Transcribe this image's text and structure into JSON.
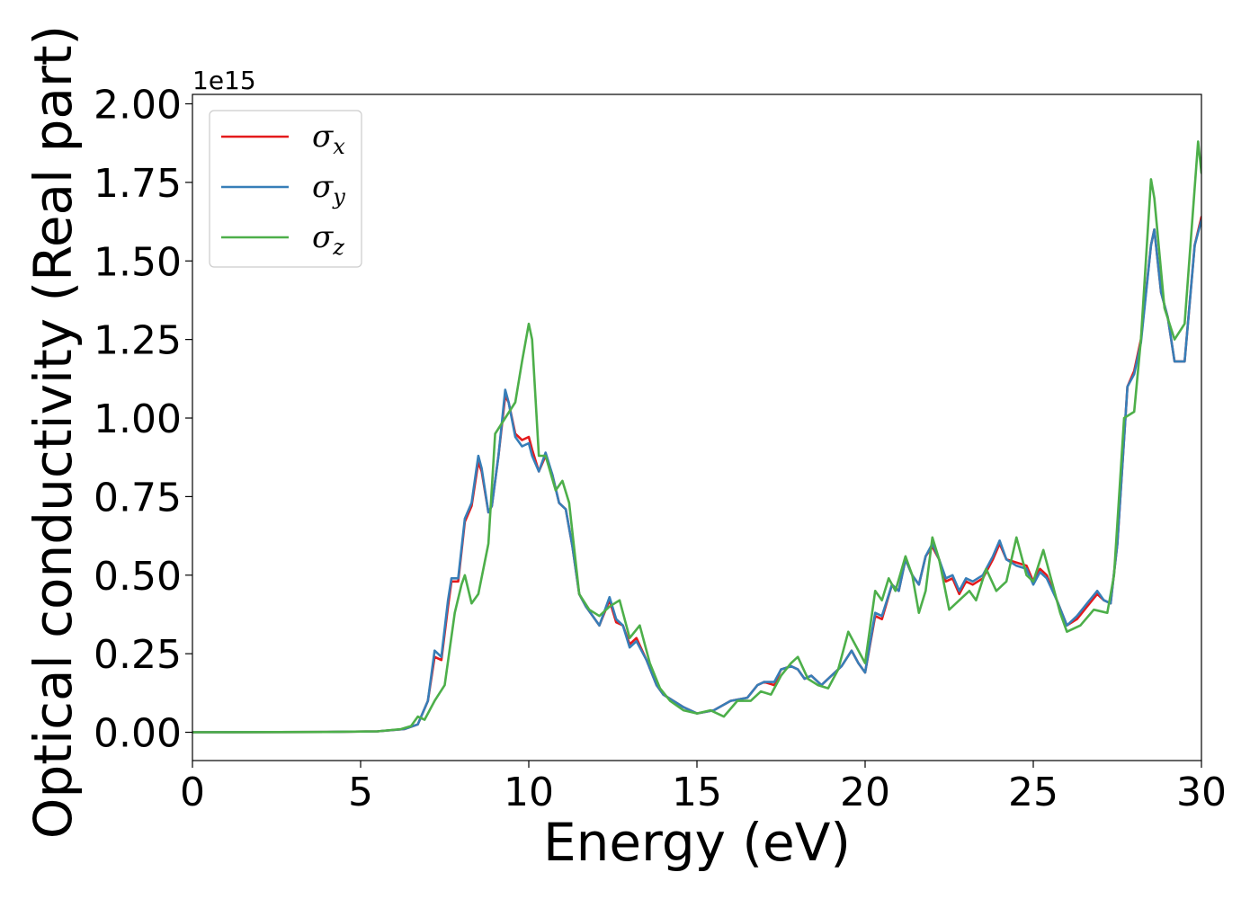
{
  "chart_data": {
    "type": "line",
    "xlabel": "Energy (eV)",
    "ylabel": "Optical conductivity (Real part)",
    "y_offset_label": "1e15",
    "y_scale": 1000000000000000.0,
    "xlim": [
      0,
      30
    ],
    "ylim": [
      -0.09,
      2.03
    ],
    "x_ticks": [
      0,
      5,
      10,
      15,
      20,
      25,
      30
    ],
    "x_tick_labels": [
      "0",
      "5",
      "10",
      "15",
      "20",
      "25",
      "30"
    ],
    "y_ticks": [
      0.0,
      0.25,
      0.5,
      0.75,
      1.0,
      1.25,
      1.5,
      1.75,
      2.0
    ],
    "y_tick_labels": [
      "0.00",
      "0.25",
      "0.50",
      "0.75",
      "1.00",
      "1.25",
      "1.50",
      "1.75",
      "2.00"
    ],
    "grid": false,
    "legend_position": "top-left",
    "series": [
      {
        "name": "σx",
        "symbol": "σ",
        "subscript": "x",
        "color": "#e41a1c",
        "points": [
          [
            0,
            0
          ],
          [
            4,
            0.001
          ],
          [
            5.5,
            0.003
          ],
          [
            6.3,
            0.01
          ],
          [
            6.7,
            0.025
          ],
          [
            7.0,
            0.1
          ],
          [
            7.2,
            0.24
          ],
          [
            7.4,
            0.23
          ],
          [
            7.6,
            0.4
          ],
          [
            7.7,
            0.48
          ],
          [
            7.9,
            0.48
          ],
          [
            8.1,
            0.67
          ],
          [
            8.3,
            0.72
          ],
          [
            8.5,
            0.86
          ],
          [
            8.6,
            0.83
          ],
          [
            8.8,
            0.7
          ],
          [
            8.9,
            0.72
          ],
          [
            9.1,
            0.88
          ],
          [
            9.3,
            1.07
          ],
          [
            9.4,
            1.05
          ],
          [
            9.6,
            0.95
          ],
          [
            9.8,
            0.93
          ],
          [
            10.0,
            0.94
          ],
          [
            10.1,
            0.9
          ],
          [
            10.3,
            0.83
          ],
          [
            10.5,
            0.88
          ],
          [
            10.7,
            0.82
          ],
          [
            10.9,
            0.73
          ],
          [
            11.1,
            0.71
          ],
          [
            11.3,
            0.59
          ],
          [
            11.5,
            0.44
          ],
          [
            11.7,
            0.4
          ],
          [
            11.9,
            0.37
          ],
          [
            12.1,
            0.34
          ],
          [
            12.4,
            0.42
          ],
          [
            12.6,
            0.35
          ],
          [
            12.8,
            0.34
          ],
          [
            13.0,
            0.28
          ],
          [
            13.2,
            0.3
          ],
          [
            13.5,
            0.23
          ],
          [
            13.8,
            0.15
          ],
          [
            14.0,
            0.12
          ],
          [
            14.3,
            0.1
          ],
          [
            14.6,
            0.08
          ],
          [
            15.0,
            0.06
          ],
          [
            15.5,
            0.07
          ],
          [
            16.0,
            0.1
          ],
          [
            16.5,
            0.11
          ],
          [
            16.8,
            0.15
          ],
          [
            17.0,
            0.16
          ],
          [
            17.3,
            0.15
          ],
          [
            17.5,
            0.2
          ],
          [
            17.8,
            0.21
          ],
          [
            18.0,
            0.2
          ],
          [
            18.2,
            0.17
          ],
          [
            18.4,
            0.18
          ],
          [
            18.7,
            0.15
          ],
          [
            19.0,
            0.18
          ],
          [
            19.3,
            0.21
          ],
          [
            19.6,
            0.26
          ],
          [
            19.8,
            0.22
          ],
          [
            20.0,
            0.19
          ],
          [
            20.3,
            0.37
          ],
          [
            20.5,
            0.36
          ],
          [
            20.8,
            0.47
          ],
          [
            21.0,
            0.45
          ],
          [
            21.2,
            0.55
          ],
          [
            21.4,
            0.5
          ],
          [
            21.6,
            0.47
          ],
          [
            21.8,
            0.56
          ],
          [
            22.0,
            0.59
          ],
          [
            22.2,
            0.55
          ],
          [
            22.4,
            0.48
          ],
          [
            22.6,
            0.49
          ],
          [
            22.8,
            0.44
          ],
          [
            23.0,
            0.48
          ],
          [
            23.2,
            0.47
          ],
          [
            23.5,
            0.49
          ],
          [
            23.8,
            0.55
          ],
          [
            24.0,
            0.6
          ],
          [
            24.2,
            0.55
          ],
          [
            24.5,
            0.54
          ],
          [
            24.8,
            0.53
          ],
          [
            25.0,
            0.48
          ],
          [
            25.2,
            0.52
          ],
          [
            25.4,
            0.5
          ],
          [
            25.7,
            0.42
          ],
          [
            26.0,
            0.34
          ],
          [
            26.3,
            0.36
          ],
          [
            26.6,
            0.4
          ],
          [
            26.9,
            0.44
          ],
          [
            27.1,
            0.42
          ],
          [
            27.3,
            0.41
          ],
          [
            27.5,
            0.6
          ],
          [
            27.8,
            1.1
          ],
          [
            28.0,
            1.15
          ],
          [
            28.2,
            1.25
          ],
          [
            28.5,
            1.55
          ],
          [
            28.6,
            1.6
          ],
          [
            28.8,
            1.4
          ],
          [
            29.0,
            1.32
          ],
          [
            29.2,
            1.18
          ],
          [
            29.5,
            1.18
          ],
          [
            29.8,
            1.55
          ],
          [
            30.0,
            1.64
          ]
        ]
      },
      {
        "name": "σy",
        "symbol": "σ",
        "subscript": "y",
        "color": "#377eb8",
        "points": [
          [
            0,
            0
          ],
          [
            4,
            0.001
          ],
          [
            5.5,
            0.003
          ],
          [
            6.3,
            0.01
          ],
          [
            6.7,
            0.025
          ],
          [
            7.0,
            0.1
          ],
          [
            7.2,
            0.26
          ],
          [
            7.4,
            0.24
          ],
          [
            7.6,
            0.42
          ],
          [
            7.7,
            0.49
          ],
          [
            7.9,
            0.49
          ],
          [
            8.1,
            0.68
          ],
          [
            8.3,
            0.73
          ],
          [
            8.5,
            0.88
          ],
          [
            8.6,
            0.84
          ],
          [
            8.8,
            0.7
          ],
          [
            8.9,
            0.72
          ],
          [
            9.1,
            0.88
          ],
          [
            9.3,
            1.09
          ],
          [
            9.4,
            1.05
          ],
          [
            9.6,
            0.94
          ],
          [
            9.8,
            0.91
          ],
          [
            10.0,
            0.92
          ],
          [
            10.1,
            0.88
          ],
          [
            10.3,
            0.83
          ],
          [
            10.5,
            0.89
          ],
          [
            10.7,
            0.82
          ],
          [
            10.9,
            0.73
          ],
          [
            11.1,
            0.71
          ],
          [
            11.3,
            0.59
          ],
          [
            11.5,
            0.44
          ],
          [
            11.7,
            0.4
          ],
          [
            11.9,
            0.37
          ],
          [
            12.1,
            0.34
          ],
          [
            12.4,
            0.43
          ],
          [
            12.6,
            0.36
          ],
          [
            12.8,
            0.34
          ],
          [
            13.0,
            0.27
          ],
          [
            13.2,
            0.29
          ],
          [
            13.5,
            0.23
          ],
          [
            13.8,
            0.15
          ],
          [
            14.0,
            0.12
          ],
          [
            14.3,
            0.1
          ],
          [
            14.6,
            0.08
          ],
          [
            15.0,
            0.06
          ],
          [
            15.5,
            0.07
          ],
          [
            16.0,
            0.1
          ],
          [
            16.5,
            0.11
          ],
          [
            16.8,
            0.15
          ],
          [
            17.0,
            0.16
          ],
          [
            17.3,
            0.16
          ],
          [
            17.5,
            0.2
          ],
          [
            17.8,
            0.21
          ],
          [
            18.0,
            0.2
          ],
          [
            18.2,
            0.17
          ],
          [
            18.4,
            0.18
          ],
          [
            18.7,
            0.15
          ],
          [
            19.0,
            0.18
          ],
          [
            19.3,
            0.21
          ],
          [
            19.6,
            0.26
          ],
          [
            19.8,
            0.22
          ],
          [
            20.0,
            0.19
          ],
          [
            20.3,
            0.38
          ],
          [
            20.5,
            0.37
          ],
          [
            20.8,
            0.47
          ],
          [
            21.0,
            0.45
          ],
          [
            21.2,
            0.55
          ],
          [
            21.4,
            0.5
          ],
          [
            21.6,
            0.47
          ],
          [
            21.8,
            0.56
          ],
          [
            22.0,
            0.6
          ],
          [
            22.2,
            0.55
          ],
          [
            22.4,
            0.49
          ],
          [
            22.6,
            0.5
          ],
          [
            22.8,
            0.45
          ],
          [
            23.0,
            0.49
          ],
          [
            23.2,
            0.48
          ],
          [
            23.5,
            0.5
          ],
          [
            23.8,
            0.56
          ],
          [
            24.0,
            0.61
          ],
          [
            24.2,
            0.55
          ],
          [
            24.5,
            0.53
          ],
          [
            24.8,
            0.52
          ],
          [
            25.0,
            0.47
          ],
          [
            25.2,
            0.51
          ],
          [
            25.4,
            0.49
          ],
          [
            25.7,
            0.42
          ],
          [
            26.0,
            0.34
          ],
          [
            26.3,
            0.37
          ],
          [
            26.6,
            0.41
          ],
          [
            26.9,
            0.45
          ],
          [
            27.1,
            0.42
          ],
          [
            27.3,
            0.41
          ],
          [
            27.5,
            0.6
          ],
          [
            27.8,
            1.1
          ],
          [
            28.0,
            1.14
          ],
          [
            28.2,
            1.24
          ],
          [
            28.5,
            1.55
          ],
          [
            28.6,
            1.6
          ],
          [
            28.8,
            1.4
          ],
          [
            29.0,
            1.32
          ],
          [
            29.2,
            1.18
          ],
          [
            29.5,
            1.18
          ],
          [
            29.8,
            1.55
          ],
          [
            30.0,
            1.63
          ]
        ]
      },
      {
        "name": "σz",
        "symbol": "σ",
        "subscript": "z",
        "color": "#4daf4a",
        "points": [
          [
            0,
            0
          ],
          [
            4,
            0.001
          ],
          [
            5.5,
            0.003
          ],
          [
            6.2,
            0.01
          ],
          [
            6.5,
            0.02
          ],
          [
            6.7,
            0.05
          ],
          [
            6.9,
            0.04
          ],
          [
            7.2,
            0.1
          ],
          [
            7.5,
            0.15
          ],
          [
            7.8,
            0.38
          ],
          [
            8.0,
            0.47
          ],
          [
            8.1,
            0.5
          ],
          [
            8.3,
            0.41
          ],
          [
            8.5,
            0.44
          ],
          [
            8.8,
            0.6
          ],
          [
            9.0,
            0.95
          ],
          [
            9.3,
            1.0
          ],
          [
            9.6,
            1.05
          ],
          [
            9.8,
            1.18
          ],
          [
            10.0,
            1.3
          ],
          [
            10.1,
            1.25
          ],
          [
            10.3,
            0.88
          ],
          [
            10.5,
            0.88
          ],
          [
            10.8,
            0.77
          ],
          [
            11.0,
            0.8
          ],
          [
            11.2,
            0.73
          ],
          [
            11.5,
            0.44
          ],
          [
            11.8,
            0.39
          ],
          [
            12.1,
            0.37
          ],
          [
            12.4,
            0.4
          ],
          [
            12.7,
            0.42
          ],
          [
            13.0,
            0.3
          ],
          [
            13.3,
            0.34
          ],
          [
            13.6,
            0.22
          ],
          [
            13.9,
            0.14
          ],
          [
            14.2,
            0.1
          ],
          [
            14.6,
            0.07
          ],
          [
            15.0,
            0.06
          ],
          [
            15.4,
            0.07
          ],
          [
            15.8,
            0.05
          ],
          [
            16.2,
            0.1
          ],
          [
            16.6,
            0.1
          ],
          [
            16.9,
            0.13
          ],
          [
            17.2,
            0.12
          ],
          [
            17.5,
            0.18
          ],
          [
            17.8,
            0.22
          ],
          [
            18.0,
            0.24
          ],
          [
            18.3,
            0.17
          ],
          [
            18.6,
            0.15
          ],
          [
            18.9,
            0.14
          ],
          [
            19.2,
            0.2
          ],
          [
            19.5,
            0.32
          ],
          [
            19.7,
            0.28
          ],
          [
            20.0,
            0.22
          ],
          [
            20.3,
            0.45
          ],
          [
            20.5,
            0.42
          ],
          [
            20.7,
            0.49
          ],
          [
            20.9,
            0.45
          ],
          [
            21.2,
            0.56
          ],
          [
            21.4,
            0.5
          ],
          [
            21.6,
            0.38
          ],
          [
            21.8,
            0.45
          ],
          [
            22.0,
            0.62
          ],
          [
            22.2,
            0.55
          ],
          [
            22.5,
            0.39
          ],
          [
            22.8,
            0.42
          ],
          [
            23.1,
            0.45
          ],
          [
            23.3,
            0.42
          ],
          [
            23.6,
            0.52
          ],
          [
            23.9,
            0.45
          ],
          [
            24.2,
            0.48
          ],
          [
            24.5,
            0.62
          ],
          [
            24.8,
            0.5
          ],
          [
            25.0,
            0.48
          ],
          [
            25.3,
            0.58
          ],
          [
            25.5,
            0.5
          ],
          [
            25.8,
            0.38
          ],
          [
            26.0,
            0.32
          ],
          [
            26.4,
            0.34
          ],
          [
            26.8,
            0.39
          ],
          [
            27.2,
            0.38
          ],
          [
            27.4,
            0.5
          ],
          [
            27.7,
            1.0
          ],
          [
            28.0,
            1.02
          ],
          [
            28.2,
            1.25
          ],
          [
            28.5,
            1.76
          ],
          [
            28.6,
            1.7
          ],
          [
            28.9,
            1.35
          ],
          [
            29.2,
            1.25
          ],
          [
            29.5,
            1.3
          ],
          [
            29.9,
            1.88
          ],
          [
            30.0,
            1.78
          ]
        ]
      }
    ]
  }
}
